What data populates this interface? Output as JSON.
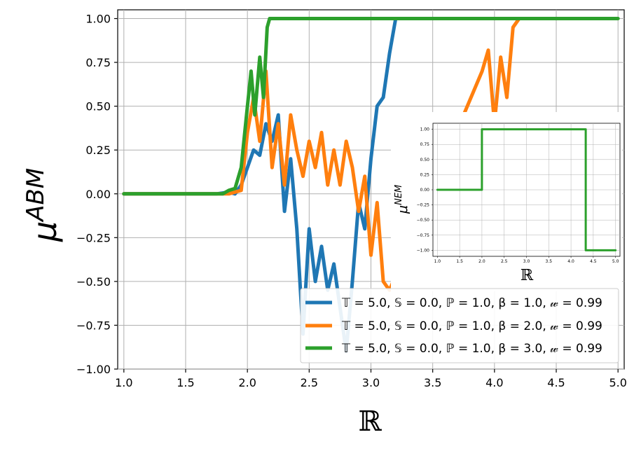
{
  "chart_data": [
    {
      "type": "line",
      "title": "",
      "xlabel": "ℝ",
      "ylabel": "μ",
      "ylabel_superscript": "ABM",
      "xlim": [
        0.95,
        5.05
      ],
      "ylim": [
        -1.0,
        1.05
      ],
      "xticks": [
        1.0,
        1.5,
        2.0,
        2.5,
        3.0,
        3.5,
        4.0,
        4.5,
        5.0
      ],
      "xtick_labels": [
        "1.0",
        "1.5",
        "2.0",
        "2.5",
        "3.0",
        "3.5",
        "4.0",
        "4.5",
        "5.0"
      ],
      "yticks": [
        1.0,
        0.75,
        0.5,
        0.25,
        0.0,
        -0.25,
        -0.5,
        -0.75,
        -1.0
      ],
      "ytick_labels": [
        "1.00",
        "0.75",
        "0.50",
        "0.25",
        "0.00",
        "−0.25",
        "−0.50",
        "−0.75",
        "−1.00"
      ],
      "grid": true,
      "legend_position": "lower-right",
      "series": [
        {
          "name": "𝕋 = 5.0, 𝕊 = 0.0, ℙ = 1.0, β = 1.0, 𝓌 = 0.99",
          "color": "#1f77b4",
          "x": [
            1.0,
            1.5,
            1.75,
            1.85,
            1.9,
            1.95,
            2.0,
            2.05,
            2.1,
            2.15,
            2.2,
            2.25,
            2.3,
            2.35,
            2.4,
            2.45,
            2.5,
            2.55,
            2.6,
            2.65,
            2.7,
            2.75,
            2.8,
            2.85,
            2.9,
            2.95,
            3.0,
            3.05,
            3.1,
            3.15,
            3.2
          ],
          "y": [
            0.0,
            0.0,
            0.0,
            0.01,
            0.0,
            0.05,
            0.15,
            0.25,
            0.22,
            0.4,
            0.3,
            0.45,
            -0.1,
            0.2,
            -0.2,
            -0.8,
            -0.2,
            -0.5,
            -0.3,
            -0.55,
            -0.4,
            -0.65,
            -0.9,
            -0.5,
            -0.05,
            -0.2,
            0.2,
            0.5,
            0.55,
            0.8,
            1.0
          ]
        },
        {
          "name": "𝕋 = 5.0, 𝕊 = 0.0, ℙ = 1.0, β = 2.0, 𝓌 = 0.99",
          "color": "#ff7f0e",
          "x": [
            1.0,
            1.5,
            1.85,
            1.95,
            2.0,
            2.05,
            2.1,
            2.15,
            2.2,
            2.25,
            2.3,
            2.35,
            2.4,
            2.45,
            2.5,
            2.55,
            2.6,
            2.65,
            2.7,
            2.75,
            2.8,
            2.85,
            2.9,
            2.95,
            3.0,
            3.05,
            3.1,
            3.15,
            3.9,
            3.95,
            4.0,
            4.05,
            4.1,
            4.15,
            4.2
          ],
          "y": [
            0.0,
            0.0,
            0.0,
            0.02,
            0.35,
            0.55,
            0.3,
            0.7,
            0.15,
            0.4,
            0.05,
            0.45,
            0.25,
            0.1,
            0.3,
            0.15,
            0.35,
            0.05,
            0.25,
            0.05,
            0.3,
            0.15,
            -0.1,
            0.1,
            -0.35,
            -0.05,
            -0.5,
            -0.55,
            0.7,
            0.82,
            0.4,
            0.78,
            0.55,
            0.95,
            1.0
          ]
        },
        {
          "name": "𝕋 = 5.0, 𝕊 = 0.0, ℙ = 1.0, β = 3.0, 𝓌 = 0.99",
          "color": "#2ca02c",
          "x": [
            1.0,
            1.5,
            1.8,
            1.85,
            1.9,
            1.95,
            2.0,
            2.03,
            2.06,
            2.1,
            2.13,
            2.16,
            2.18,
            2.2,
            3.0,
            4.0,
            5.0
          ],
          "y": [
            0.0,
            0.0,
            0.0,
            0.02,
            0.03,
            0.15,
            0.5,
            0.7,
            0.45,
            0.78,
            0.55,
            0.95,
            1.0,
            1.0,
            1.0,
            1.0,
            1.0
          ]
        }
      ]
    },
    {
      "type": "line",
      "title": "",
      "xlabel": "ℝ",
      "ylabel": "μ",
      "ylabel_superscript": "NEM",
      "xlim": [
        0.9,
        5.1
      ],
      "ylim": [
        -1.1,
        1.1
      ],
      "xticks": [
        1.0,
        1.5,
        2.0,
        2.5,
        3.0,
        3.5,
        4.0,
        4.5,
        5.0
      ],
      "xtick_labels": [
        "1.0",
        "1.5",
        "2.0",
        "2.5",
        "3.0",
        "3.5",
        "4.0",
        "4.5",
        "5.0"
      ],
      "yticks": [
        1.0,
        0.75,
        0.5,
        0.25,
        0.0,
        -0.25,
        -0.5,
        -0.75,
        -1.0
      ],
      "ytick_labels": [
        "1.00",
        "0.75",
        "0.50",
        "0.25",
        "0.00",
        "−0.25",
        "−0.50",
        "−0.75",
        "−1.00"
      ],
      "grid": true,
      "series": [
        {
          "name": "",
          "color": "#2ca02c",
          "x": [
            1.0,
            2.0,
            2.0,
            4.33,
            4.33,
            5.0
          ],
          "y": [
            0.0,
            0.0,
            1.0,
            1.0,
            -1.0,
            -1.0
          ]
        }
      ]
    }
  ]
}
